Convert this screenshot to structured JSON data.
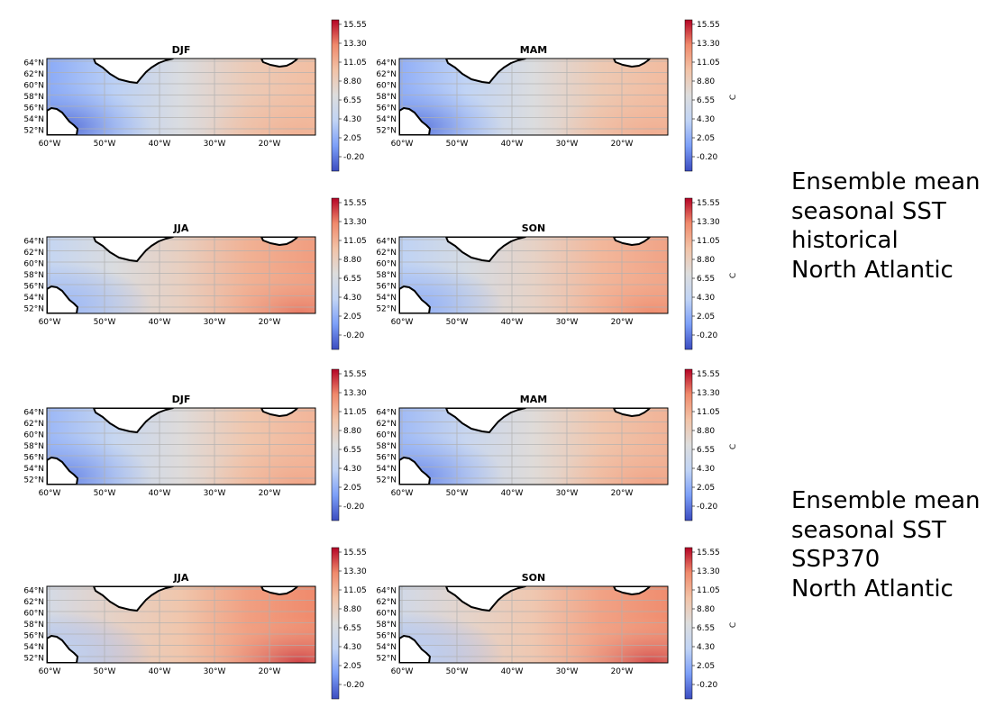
{
  "colors": {
    "cmap": [
      "#3b4cc0",
      "#7c9ff8",
      "#c1d4f5",
      "#dddddd",
      "#f2c3a7",
      "#f08a6c",
      "#b40426"
    ],
    "land": "#ffffff",
    "coast": "#000000",
    "grid": "#b0b0b0"
  },
  "colorbar": {
    "ticks": [
      "15.55",
      "13.30",
      "11.05",
      "8.80",
      "6.55",
      "4.30",
      "2.05",
      "-0.20"
    ],
    "unit": "C"
  },
  "lat_labels": [
    "64°N",
    "62°N",
    "60°N",
    "58°N",
    "56°N",
    "54°N",
    "52°N"
  ],
  "lon_labels": [
    "60°W",
    "50°W",
    "40°W",
    "30°W",
    "20°W"
  ],
  "rows": [
    {
      "panels": [
        {
          "title": "DJF",
          "warmth": 0.0
        },
        {
          "title": "MAM",
          "warmth": 0.05
        }
      ]
    },
    {
      "panels": [
        {
          "title": "JJA",
          "warmth": 0.55
        },
        {
          "title": "SON",
          "warmth": 0.45
        }
      ]
    },
    {
      "panels": [
        {
          "title": "DJF",
          "warmth": 0.15
        },
        {
          "title": "MAM",
          "warmth": 0.18
        }
      ]
    },
    {
      "panels": [
        {
          "title": "JJA",
          "warmth": 0.85
        },
        {
          "title": "SON",
          "warmth": 0.8
        }
      ]
    }
  ],
  "captions": [
    {
      "lines": [
        "Ensemble mean",
        "seasonal SST",
        "historical",
        "North Atlantic"
      ]
    },
    {
      "lines": [
        "Ensemble mean",
        "seasonal SST",
        "SSP370",
        "North Atlantic"
      ]
    }
  ]
}
